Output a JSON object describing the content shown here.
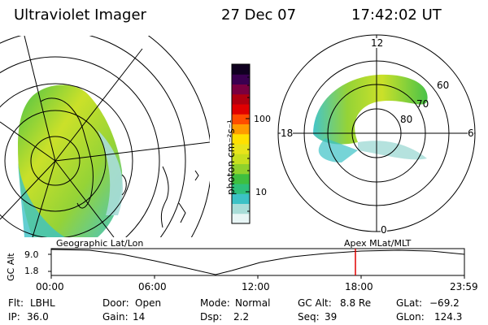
{
  "header": {
    "instrument": "Ultraviolet Imager",
    "date": "27 Dec 07",
    "time": "17:42:02 UT"
  },
  "colorbar": {
    "label": "photon cm⁻²s⁻¹",
    "ticks": [
      "100",
      "10"
    ],
    "scale": "log",
    "colors": [
      "#e8f6f6",
      "#a8ddd8",
      "#3cc2c6",
      "#2ec07a",
      "#3fbf3f",
      "#8fd12c",
      "#c8df1e",
      "#e8e41a",
      "#ffe000",
      "#ff9b00",
      "#ff4c00",
      "#e00000",
      "#b00010",
      "#7a0040",
      "#3a0050",
      "#100020"
    ]
  },
  "geo_panel": {
    "label": "Geographic Lat/Lon"
  },
  "mag_panel": {
    "label": "Apex  MLat/MLT",
    "mlt_labels": {
      "top": "12",
      "left": "18",
      "right": "6",
      "bottom": "0"
    },
    "lat_labels": [
      "60",
      "70",
      "80"
    ]
  },
  "altitude_plot": {
    "ylabel": "GC Alt",
    "yticks": [
      "9.0",
      "1.8"
    ],
    "xticks": [
      "00:00",
      "06:00",
      "12:00",
      "18:00",
      "23:59"
    ],
    "marker_time": "17:42",
    "marker_color": "#e00000"
  },
  "status": {
    "filter_label": "Flt:",
    "filter_value": "LBHL",
    "door_label": "Door:",
    "door_value": "Open",
    "mode_label": "Mode:",
    "mode_value": "Normal",
    "gcalt_label": "GC Alt:",
    "gcalt_value": "8.8 Re",
    "glat_label": "GLat:",
    "glat_value": "−69.2",
    "ip_label": "IP:",
    "ip_value": "36.0",
    "gain_label": "Gain:",
    "gain_value": "14",
    "dsp_label": "Dsp:",
    "dsp_value": "2.2",
    "seq_label": "Seq:",
    "seq_value": "39",
    "glon_label": "GLon:",
    "glon_value": "124.3"
  }
}
